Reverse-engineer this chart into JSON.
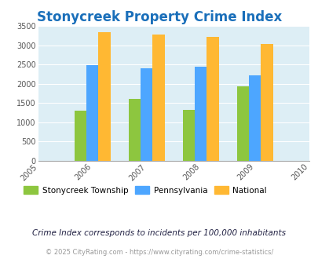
{
  "title": "Stonycreek Property Crime Index",
  "years": [
    2006,
    2007,
    2008,
    2009
  ],
  "x_ticks": [
    2005,
    2006,
    2007,
    2008,
    2009,
    2010
  ],
  "stonycreek": [
    1300,
    1600,
    1310,
    1930
  ],
  "pennsylvania": [
    2480,
    2390,
    2440,
    2210
  ],
  "national": [
    3340,
    3270,
    3210,
    3040
  ],
  "colors": {
    "stonycreek": "#8dc63f",
    "pennsylvania": "#4da6ff",
    "national": "#ffb833"
  },
  "ylim": [
    0,
    3500
  ],
  "yticks": [
    0,
    500,
    1000,
    1500,
    2000,
    2500,
    3000,
    3500
  ],
  "title_color": "#1a6fba",
  "title_fontsize": 12,
  "background_color": "#ddeef5",
  "legend_labels": [
    "Stonycreek Township",
    "Pennsylvania",
    "National"
  ],
  "footnote1": "Crime Index corresponds to incidents per 100,000 inhabitants",
  "footnote2": "© 2025 CityRating.com - https://www.cityrating.com/crime-statistics/",
  "bar_width": 0.22
}
